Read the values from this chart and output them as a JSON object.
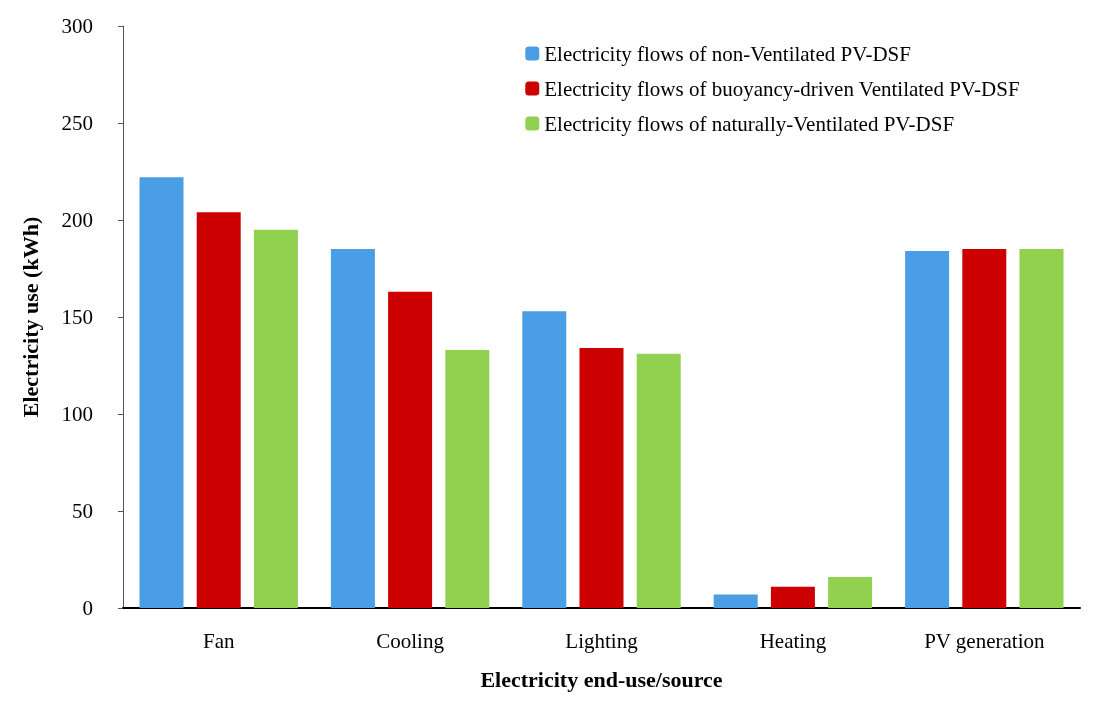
{
  "chart_data": {
    "type": "bar",
    "xlabel": "Electricity end-use/source",
    "ylabel": "Electricity use (kWh)",
    "categories": [
      "Fan",
      "Cooling",
      "Lighting",
      "Heating",
      "PV generation"
    ],
    "series": [
      {
        "name": "Electricity flows of non-Ventilated PV-DSF",
        "color": "#4a9ee6",
        "values": [
          222,
          185,
          153,
          7,
          184
        ]
      },
      {
        "name": "Electricity flows of buoyancy-driven Ventilated PV-DSF",
        "color": "#cc0000",
        "values": [
          204,
          163,
          134,
          11,
          185
        ]
      },
      {
        "name": "Electricity flows of naturally-Ventilated PV-DSF",
        "color": "#92d050",
        "values": [
          195,
          133,
          131,
          16,
          185
        ]
      }
    ],
    "ylim": [
      0,
      300
    ],
    "yticks": [
      0,
      50,
      100,
      150,
      200,
      250,
      300
    ],
    "grid": false,
    "legend": "top right"
  }
}
